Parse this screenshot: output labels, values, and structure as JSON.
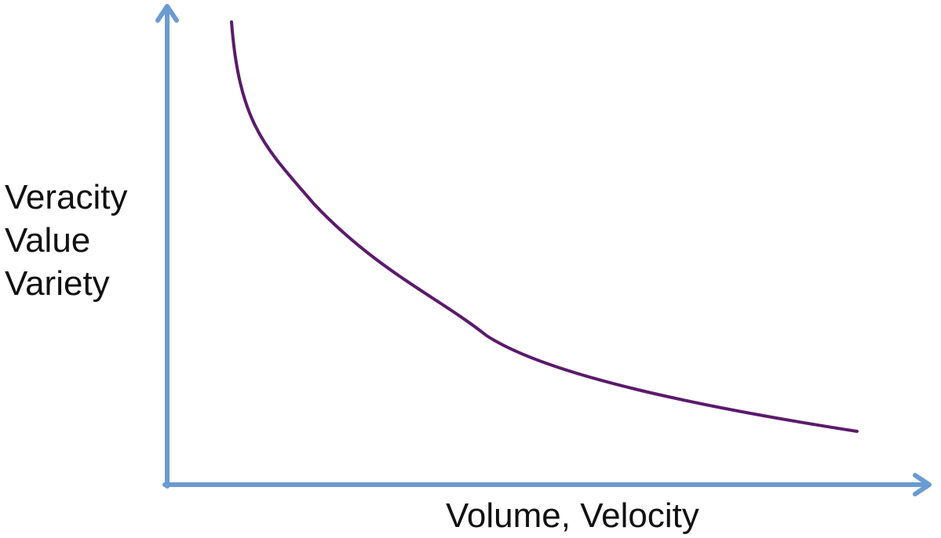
{
  "diagram": {
    "y_axis_labels": [
      "Veracity",
      "Value",
      "Variety"
    ],
    "x_axis_label": "Volume, Velocity",
    "colors": {
      "axis": "#6A9BD1",
      "curve": "#5B1A6B",
      "text": "#111111",
      "background": "#FFFFFF"
    },
    "curve": "decreasing-convex-curve"
  }
}
